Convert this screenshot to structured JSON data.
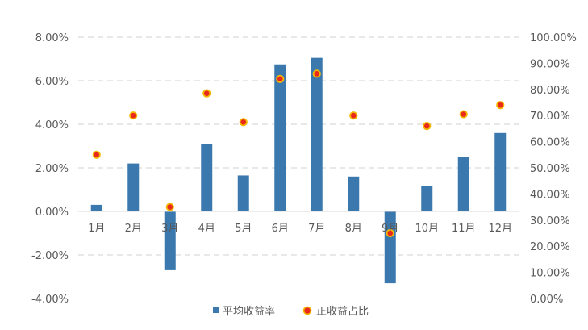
{
  "chart_data": {
    "type": "bar",
    "categories": [
      "1月",
      "2月",
      "3月",
      "4月",
      "5月",
      "6月",
      "7月",
      "8月",
      "9月",
      "10月",
      "11月",
      "12月"
    ],
    "series": [
      {
        "name": "平均收益率",
        "type": "bar",
        "axis": "left",
        "color": "#3a78ae",
        "values": [
          0.3,
          2.2,
          -2.7,
          3.1,
          1.65,
          6.75,
          7.05,
          1.6,
          -3.3,
          1.15,
          2.5,
          3.6
        ]
      },
      {
        "name": "正收益占比",
        "type": "scatter",
        "axis": "right",
        "color": "#e8291c",
        "edge_color": "#f5b800",
        "values": [
          55,
          70,
          35,
          78.5,
          67.5,
          84,
          86,
          70,
          25,
          66,
          70.5,
          74
        ]
      }
    ],
    "ylim_left": [
      -4,
      8
    ],
    "ylim_right": [
      0,
      100
    ],
    "yticks_left": [
      "-4.00%",
      "-2.00%",
      "0.00%",
      "2.00%",
      "4.00%",
      "6.00%",
      "8.00%"
    ],
    "yticks_right": [
      "0.00%",
      "10.00%",
      "20.00%",
      "30.00%",
      "40.00%",
      "50.00%",
      "60.00%",
      "70.00%",
      "80.00%",
      "90.00%",
      "100.00%"
    ],
    "grid": "horizontal-dashed",
    "legend_position": "bottom",
    "title": "",
    "xlabel": "",
    "ylabel": ""
  }
}
